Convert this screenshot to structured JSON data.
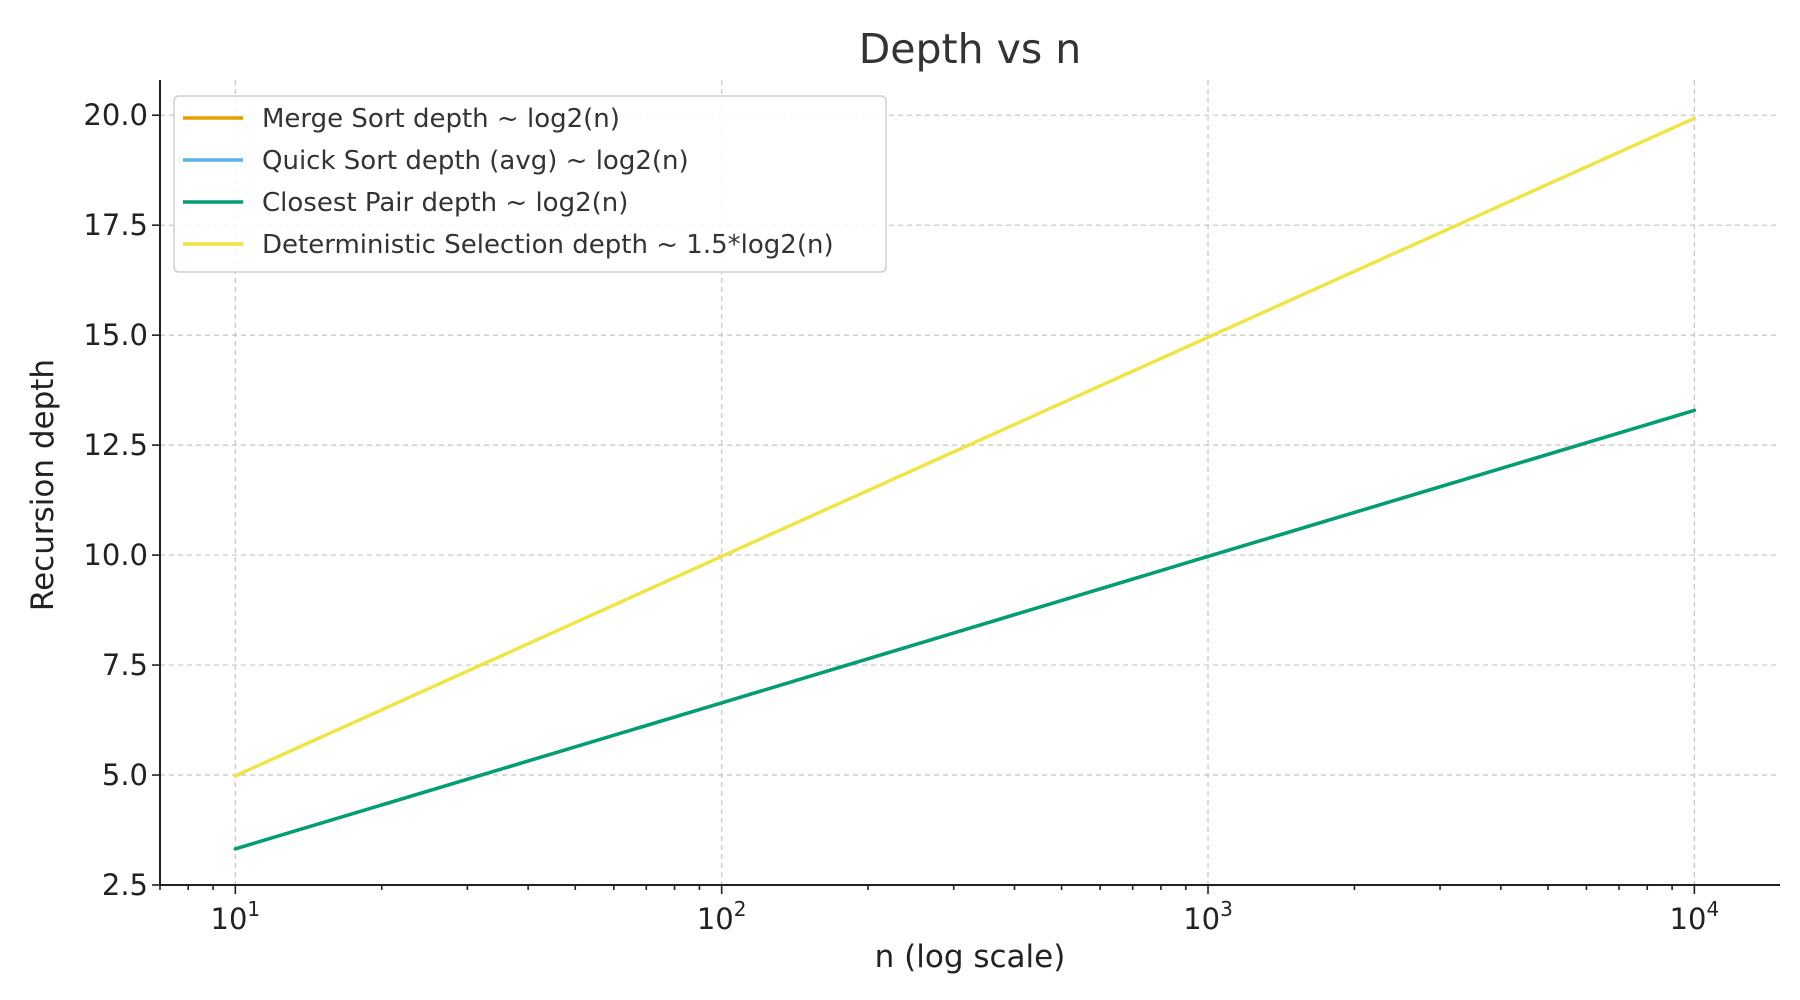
{
  "chart_data": {
    "type": "line",
    "title": "Depth vs n",
    "xlabel": "n (log scale)",
    "ylabel": "Recursion depth",
    "xscale": "log",
    "xlim": [
      7,
      15000
    ],
    "ylim": [
      2.5,
      20.8
    ],
    "x_ticks": [
      {
        "value": 10,
        "base": "10",
        "exp": "1"
      },
      {
        "value": 100,
        "base": "10",
        "exp": "2"
      },
      {
        "value": 1000,
        "base": "10",
        "exp": "3"
      },
      {
        "value": 10000,
        "base": "10",
        "exp": "4"
      }
    ],
    "y_ticks": [
      2.5,
      5.0,
      7.5,
      10.0,
      12.5,
      15.0,
      17.5,
      20.0
    ],
    "y_tick_labels": [
      "2.5",
      "5.0",
      "7.5",
      "10.0",
      "12.5",
      "15.0",
      "17.5",
      "20.0"
    ],
    "grid": true,
    "legend_position": "top-left",
    "x": [
      10,
      100,
      1000,
      10000
    ],
    "series": [
      {
        "name": "Merge Sort depth ~ log2(n)",
        "color": "#E69F00",
        "values": [
          3.32,
          6.64,
          9.97,
          13.29
        ]
      },
      {
        "name": "Quick Sort depth (avg) ~ log2(n)",
        "color": "#56B4E9",
        "values": [
          3.32,
          6.64,
          9.97,
          13.29
        ]
      },
      {
        "name": "Closest Pair depth ~ log2(n)",
        "color": "#009E73",
        "values": [
          3.32,
          6.64,
          9.97,
          13.29
        ]
      },
      {
        "name": "Deterministic Selection depth ~ 1.5*log2(n)",
        "color": "#F0E442",
        "values": [
          4.98,
          9.97,
          14.95,
          19.93
        ]
      }
    ]
  }
}
